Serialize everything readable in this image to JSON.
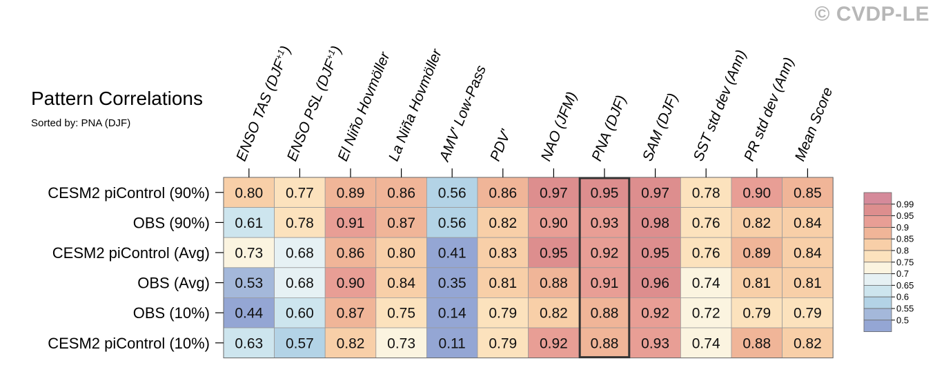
{
  "title": "Pattern Correlations",
  "subtitle": "Sorted by: PNA (DJF)",
  "watermark": "© CVDP-LE",
  "chart_data": {
    "type": "heatmap",
    "title": "Pattern Correlations",
    "subtitle": "Sorted by: PNA (DJF)",
    "columns": [
      {
        "label": "ENSO TAS (DJF",
        "sup": "+1",
        "tail": ")"
      },
      {
        "label": "ENSO PSL (DJF",
        "sup": "+1",
        "tail": ")"
      },
      {
        "label": "El Niño Hovmöller"
      },
      {
        "label": "La Niña Hovmöller"
      },
      {
        "label": "AMV' Low-Pass"
      },
      {
        "label": "PDV'"
      },
      {
        "label": "NAO (JFM)"
      },
      {
        "label": "PNA (DJF)"
      },
      {
        "label": "SAM (DJF)"
      },
      {
        "label": "SST std dev (Ann)"
      },
      {
        "label": "PR std dev (Ann)"
      },
      {
        "label": "Mean Score"
      }
    ],
    "rows": [
      "CESM2 piControl (90%)",
      "OBS (90%)",
      "CESM2 piControl (Avg)",
      "OBS (Avg)",
      "OBS (10%)",
      "CESM2 piControl (10%)"
    ],
    "values": [
      [
        "0.80",
        "0.77",
        "0.89",
        "0.86",
        "0.56",
        "0.86",
        "0.97",
        "0.95",
        "0.97",
        "0.78",
        "0.90",
        "0.85"
      ],
      [
        "0.61",
        "0.78",
        "0.91",
        "0.87",
        "0.56",
        "0.82",
        "0.90",
        "0.93",
        "0.98",
        "0.76",
        "0.82",
        "0.84"
      ],
      [
        "0.73",
        "0.68",
        "0.86",
        "0.80",
        "0.41",
        "0.83",
        "0.95",
        "0.92",
        "0.95",
        "0.76",
        "0.89",
        "0.84"
      ],
      [
        "0.53",
        "0.68",
        "0.90",
        "0.84",
        "0.35",
        "0.81",
        "0.88",
        "0.91",
        "0.96",
        "0.74",
        "0.81",
        "0.81"
      ],
      [
        "0.44",
        "0.60",
        "0.87",
        "0.75",
        "0.14",
        "0.79",
        "0.82",
        "0.88",
        "0.92",
        "0.72",
        "0.79",
        "0.79"
      ],
      [
        "0.63",
        "0.57",
        "0.82",
        "0.73",
        "0.11",
        "0.79",
        "0.92",
        "0.88",
        "0.93",
        "0.74",
        "0.88",
        "0.82"
      ]
    ],
    "highlighted_column": "PNA (DJF)",
    "colorbar": {
      "labels": [
        "0.99",
        "0.95",
        "0.9",
        "0.85",
        "0.8",
        "0.75",
        "0.7",
        "0.65",
        "0.6",
        "0.55",
        "0.5"
      ],
      "colors": [
        "#d58a9a",
        "#dd8e8e",
        "#e89e95",
        "#f0b598",
        "#f8cfa8",
        "#fce2bd",
        "#fbf4e0",
        "#e6f1f4",
        "#cde5ee",
        "#b3d3e6",
        "#a4b8da",
        "#94a6d4"
      ]
    }
  }
}
